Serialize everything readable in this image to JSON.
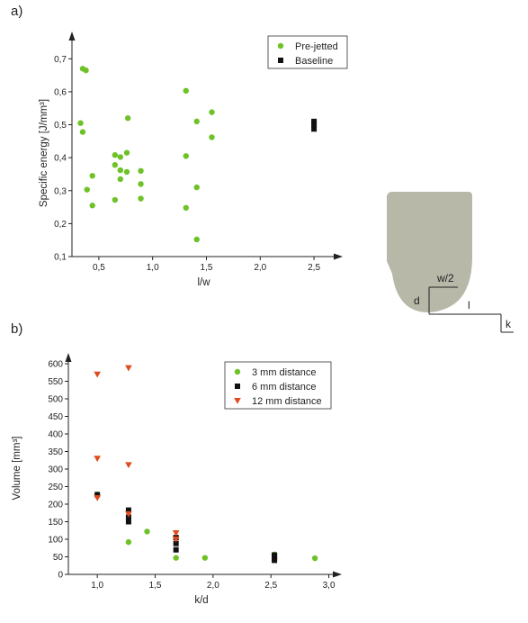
{
  "panel_a_label": "a)",
  "panel_b_label": "b)",
  "diagram": {
    "labels": {
      "half_width": "w/2",
      "depth": "d",
      "length": "l",
      "distance": "k"
    },
    "colors": {
      "body": "#b7b8a8",
      "line": "#222222"
    }
  },
  "chart_data": [
    {
      "id": "a",
      "type": "scatter",
      "title": "",
      "xlabel": "l/w",
      "ylabel": "Specific energy [J/mm³]",
      "xlim": [
        0.25,
        2.7
      ],
      "ylim": [
        0.1,
        0.75
      ],
      "xticks": [
        0.5,
        1.0,
        1.5,
        2.0,
        2.5
      ],
      "xtick_labels": [
        "0,5",
        "1,0",
        "1,5",
        "2,0",
        "2,5"
      ],
      "yticks": [
        0.1,
        0.2,
        0.3,
        0.4,
        0.5,
        0.6,
        0.7
      ],
      "ytick_labels": [
        "0,1",
        "0,2",
        "0,3",
        "0,4",
        "0,5",
        "0,6",
        "0,7"
      ],
      "legend_position": "top-right",
      "series": [
        {
          "name": "Pre-jetted",
          "marker": "circle",
          "color": "#6ec228",
          "points": [
            [
              0.35,
              0.67
            ],
            [
              0.38,
              0.665
            ],
            [
              0.33,
              0.505
            ],
            [
              0.35,
              0.478
            ],
            [
              0.44,
              0.345
            ],
            [
              0.39,
              0.303
            ],
            [
              0.44,
              0.255
            ],
            [
              0.65,
              0.408
            ],
            [
              0.7,
              0.402
            ],
            [
              0.76,
              0.415
            ],
            [
              0.65,
              0.378
            ],
            [
              0.7,
              0.362
            ],
            [
              0.76,
              0.357
            ],
            [
              0.7,
              0.335
            ],
            [
              0.65,
              0.272
            ],
            [
              0.77,
              0.52
            ],
            [
              0.89,
              0.36
            ],
            [
              0.89,
              0.32
            ],
            [
              0.89,
              0.276
            ],
            [
              1.31,
              0.603
            ],
            [
              1.31,
              0.405
            ],
            [
              1.31,
              0.248
            ],
            [
              1.41,
              0.51
            ],
            [
              1.41,
              0.31
            ],
            [
              1.41,
              0.152
            ],
            [
              1.55,
              0.538
            ],
            [
              1.55,
              0.462
            ]
          ]
        },
        {
          "name": "Baseline",
          "marker": "square",
          "color": "#111111",
          "points": [
            [
              2.5,
              0.51
            ],
            [
              2.5,
              0.5
            ],
            [
              2.5,
              0.487
            ]
          ]
        }
      ]
    },
    {
      "id": "b",
      "type": "scatter",
      "title": "",
      "xlabel": "k/d",
      "ylabel": "Volume [mm³]",
      "xlim": [
        0.75,
        3.05
      ],
      "ylim": [
        0,
        600
      ],
      "xticks": [
        1.0,
        1.5,
        2.0,
        2.5,
        3.0
      ],
      "xtick_labels": [
        "1,0",
        "1,5",
        "2,0",
        "2,5",
        "3,0"
      ],
      "yticks": [
        0,
        50,
        100,
        150,
        200,
        250,
        300,
        350,
        400,
        450,
        500,
        550,
        600
      ],
      "ytick_labels": [
        "0",
        "50",
        "100",
        "150",
        "200",
        "250",
        "300",
        "350",
        "400",
        "450",
        "500",
        "550",
        "600"
      ],
      "legend_position": "top-right",
      "series": [
        {
          "name": "3 mm distance",
          "marker": "circle",
          "color": "#6ec228",
          "points": [
            [
              1.0,
              228
            ],
            [
              1.27,
              92
            ],
            [
              1.43,
              122
            ],
            [
              1.68,
              47
            ],
            [
              1.93,
              47
            ],
            [
              2.53,
              57
            ],
            [
              2.88,
              46
            ]
          ]
        },
        {
          "name": "6 mm distance",
          "marker": "square",
          "color": "#111111",
          "points": [
            [
              1.0,
              227
            ],
            [
              1.27,
              183
            ],
            [
              1.27,
              163
            ],
            [
              1.27,
              150
            ],
            [
              1.68,
              105
            ],
            [
              1.68,
              88
            ],
            [
              1.68,
              70
            ],
            [
              2.53,
              55
            ],
            [
              2.53,
              50
            ],
            [
              2.53,
              45
            ],
            [
              2.53,
              40
            ]
          ]
        },
        {
          "name": "12 mm distance",
          "marker": "triangle-down",
          "color": "#e04a1f",
          "points": [
            [
              1.0,
              570
            ],
            [
              1.0,
              330
            ],
            [
              1.0,
              218
            ],
            [
              1.27,
              588
            ],
            [
              1.27,
              312
            ],
            [
              1.27,
              172
            ],
            [
              1.68,
              118
            ],
            [
              1.68,
              100
            ]
          ]
        }
      ]
    }
  ]
}
